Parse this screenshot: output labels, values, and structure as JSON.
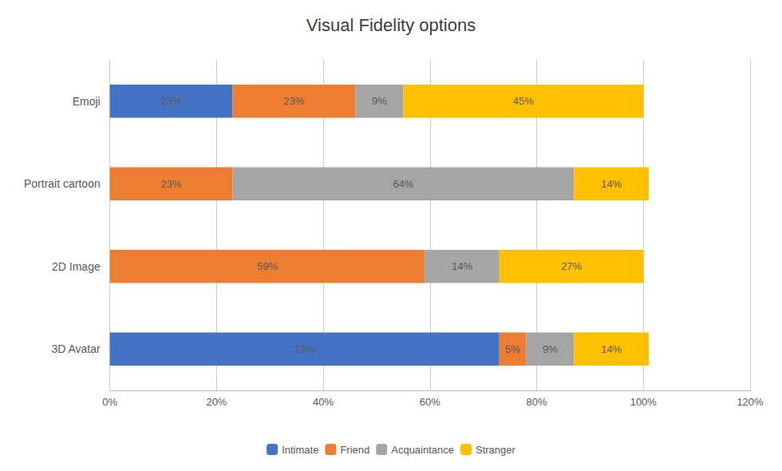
{
  "chart_data": {
    "type": "bar",
    "title": "Visual Fidelity options",
    "orientation": "horizontal",
    "stacked": true,
    "data_labels": true,
    "grid": true,
    "legend": "bottom",
    "categories": [
      "3D Avatar",
      "2D Image",
      "Portrait cartoon",
      "Emoji"
    ],
    "series": [
      {
        "name": "Intimate",
        "color": "#4472C4",
        "values": [
          73,
          0,
          0,
          23
        ],
        "value_labels": [
          "73%",
          null,
          null,
          "23%"
        ]
      },
      {
        "name": "Friend",
        "color": "#ED7D31",
        "values": [
          5,
          59,
          23,
          23
        ],
        "value_labels": [
          "5%",
          "59%",
          "23%",
          "23%"
        ]
      },
      {
        "name": "Acquaintance",
        "color": "#A5A5A5",
        "values": [
          9,
          14,
          64,
          9
        ],
        "value_labels": [
          "9%",
          "14%",
          "64%",
          "9%"
        ]
      },
      {
        "name": "Stranger",
        "color": "#FFC000",
        "values": [
          14,
          27,
          14,
          45
        ],
        "value_labels": [
          "14%",
          "27%",
          "14%",
          "45%"
        ]
      }
    ],
    "xlim": [
      0,
      120
    ],
    "xticks": [
      {
        "value": 0,
        "label": "0%"
      },
      {
        "value": 20,
        "label": "20%"
      },
      {
        "value": 40,
        "label": "40%"
      },
      {
        "value": 60,
        "label": "60%"
      },
      {
        "value": 80,
        "label": "80%"
      },
      {
        "value": 100,
        "label": "100%"
      },
      {
        "value": 120,
        "label": "120%"
      }
    ]
  }
}
